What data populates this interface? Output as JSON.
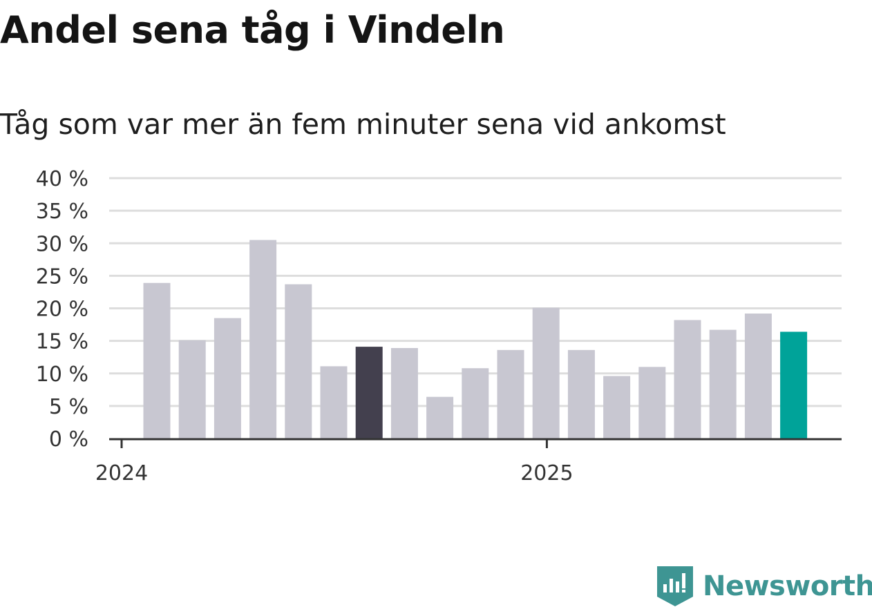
{
  "title": "Andel sena tåg i Vindeln",
  "subtitle": "Tåg som var mer än fem minuter sena vid ankomst",
  "brand": {
    "name": "Newsworthy",
    "icon": "newsworthy-logo-icon",
    "color": "#3e9593"
  },
  "colors": {
    "bar": "#c8c7d1",
    "highlight": "#43404e",
    "latest": "#00a399",
    "grid": "#dddddd",
    "axis": "#333333"
  },
  "chart_data": {
    "type": "bar",
    "title": "Andel sena tåg i Vindeln",
    "subtitle": "Tåg som var mer än fem minuter sena vid ankomst",
    "x": [
      "2024-01",
      "2024-02",
      "2024-03",
      "2024-04",
      "2024-05",
      "2024-06",
      "2024-07",
      "2024-08",
      "2024-09",
      "2024-10",
      "2024-11",
      "2024-12",
      "2025-01",
      "2025-02",
      "2025-03",
      "2025-04",
      "2025-05",
      "2025-06",
      "2025-07"
    ],
    "values": [
      23.9,
      15.1,
      18.5,
      30.5,
      23.7,
      11.1,
      14.1,
      13.9,
      6.4,
      10.8,
      13.6,
      20.1,
      13.6,
      9.6,
      11.0,
      18.2,
      16.7,
      19.2,
      16.4
    ],
    "highlight_index": 6,
    "latest_index": 18,
    "ylim": [
      0,
      40
    ],
    "yticks": [
      0,
      5,
      10,
      15,
      20,
      25,
      30,
      35,
      40
    ],
    "ytick_labels": [
      "0 %",
      "5 %",
      "10 %",
      "15 %",
      "20 %",
      "25 %",
      "30 %",
      "35 %",
      "40 %"
    ],
    "xticks": [
      {
        "label": "2024",
        "index": 0
      },
      {
        "label": "2025",
        "index": 12
      }
    ],
    "xlabel": "",
    "ylabel": "",
    "grid": true,
    "legend": "none"
  }
}
